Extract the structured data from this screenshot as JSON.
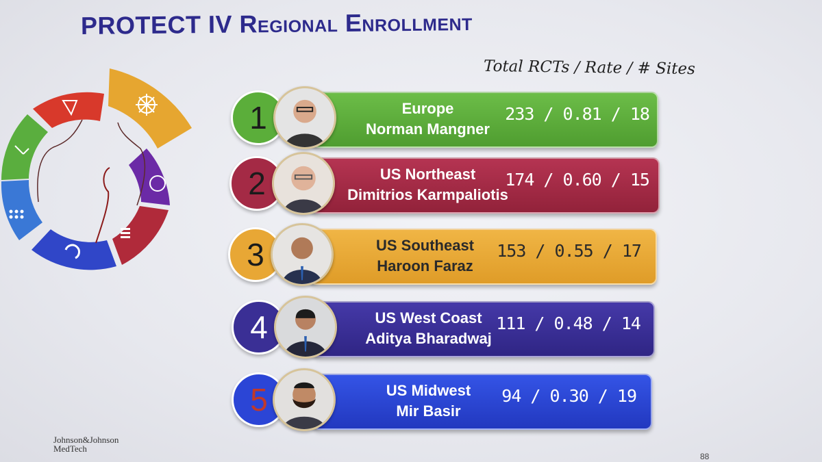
{
  "slide": {
    "title": "PROTECT IV Regional Enrollment",
    "column_header": "Total RCTs / Rate / # Sites",
    "logo_lines": [
      "Johnson&Johnson",
      "MedTech"
    ],
    "corner_mark": "88"
  },
  "rows": [
    {
      "rank": "1",
      "region": "Europe",
      "name": "Norman Mangner",
      "stats": "233 / 0.81 / 18",
      "color": "#5bae3a",
      "circle_color": "#5bae3a",
      "text_color": "#ffffff"
    },
    {
      "rank": "2",
      "region": "US Northeast",
      "name": "Dimitrios Karmpaliotis",
      "stats": "174 / 0.60 / 15",
      "color": "#a42a45",
      "circle_color": "#a42a45",
      "text_color": "#ffffff"
    },
    {
      "rank": "3",
      "region": "US Southeast",
      "name": "Haroon Faraz",
      "stats": "153 / 0.55 / 17",
      "color": "#e8a735",
      "circle_color": "#e8a735",
      "text_color": "#2a2a2a"
    },
    {
      "rank": "4",
      "region": "US West Coast",
      "name": "Aditya Bharadwaj",
      "stats": "111 / 0.48 / 14",
      "color": "#3a2f95",
      "circle_color": "#3a2f95",
      "text_color": "#ffffff"
    },
    {
      "rank": "5",
      "region": "US Midwest",
      "name": "Mir Basir",
      "stats": "94 / 0.30 / 19",
      "color": "#2b45d6",
      "circle_color": "#2b45d6",
      "text_color": "#ffffff"
    }
  ],
  "ring_segments": [
    {
      "name": "green",
      "color": "#5aae3e"
    },
    {
      "name": "red",
      "color": "#d8392b"
    },
    {
      "name": "orange",
      "color": "#e6a630"
    },
    {
      "name": "purple",
      "color": "#6b2aa6"
    },
    {
      "name": "crimson",
      "color": "#b02a3a"
    },
    {
      "name": "blue",
      "color": "#3046c8"
    },
    {
      "name": "lightblue",
      "color": "#3a78d6"
    }
  ]
}
